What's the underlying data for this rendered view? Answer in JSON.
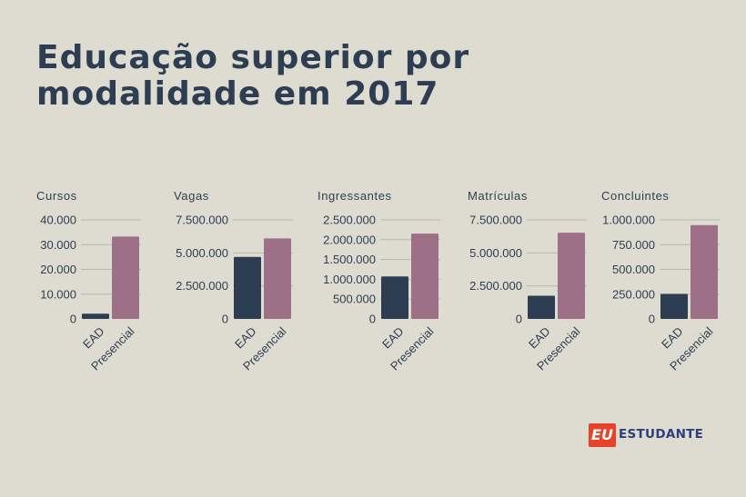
{
  "title_lines": [
    "Educação superior por",
    "modalidade em 2017"
  ],
  "colors": {
    "EAD": "#2d3e52",
    "Presencial": "#9d7088",
    "text": "#2d3e52",
    "background": "#dedbd1"
  },
  "logo": {
    "mark": "EU",
    "text": "ESTUDANTE"
  },
  "chart_data": [
    {
      "type": "bar",
      "title": "Cursos",
      "categories": [
        "EAD",
        "Presencial"
      ],
      "values": [
        2108,
        33272
      ],
      "ylim": [
        0,
        40000
      ],
      "yticks": [
        0,
        10000,
        20000,
        30000,
        40000
      ],
      "ytick_labels": [
        "0",
        "10.000",
        "20.000",
        "30.000",
        "40.000"
      ],
      "grid": true
    },
    {
      "type": "bar",
      "title": "Vagas",
      "categories": [
        "EAD",
        "Presencial"
      ],
      "values": [
        4700000,
        6100000
      ],
      "ylim": [
        0,
        7500000
      ],
      "yticks": [
        0,
        2500000,
        5000000,
        7500000
      ],
      "ytick_labels": [
        "0",
        "2.500.000",
        "5.000.000",
        "7.500.000"
      ],
      "grid": true
    },
    {
      "type": "bar",
      "title": "Ingressantes",
      "categories": [
        "EAD",
        "Presencial"
      ],
      "values": [
        1073000,
        2152000
      ],
      "ylim": [
        0,
        2500000
      ],
      "yticks": [
        0,
        500000,
        1000000,
        1500000,
        2000000,
        2500000
      ],
      "ytick_labels": [
        "0",
        "500.000",
        "1.000.000",
        "1.500.000",
        "2.000.000",
        "2.500.000"
      ],
      "grid": true
    },
    {
      "type": "bar",
      "title": "Matrículas",
      "categories": [
        "EAD",
        "Presencial"
      ],
      "values": [
        1756000,
        6530000
      ],
      "ylim": [
        0,
        7500000
      ],
      "yticks": [
        0,
        2500000,
        5000000,
        7500000
      ],
      "ytick_labels": [
        "0",
        "2.500.000",
        "5.000.000",
        "7.500.000"
      ],
      "grid": true
    },
    {
      "type": "bar",
      "title": "Concluintes",
      "categories": [
        "EAD",
        "Presencial"
      ],
      "values": [
        252000,
        947000
      ],
      "ylim": [
        0,
        1000000
      ],
      "yticks": [
        0,
        250000,
        500000,
        750000,
        1000000
      ],
      "ytick_labels": [
        "0",
        "250.000",
        "500.000",
        "750.000",
        "1.000.000"
      ],
      "grid": true
    }
  ]
}
